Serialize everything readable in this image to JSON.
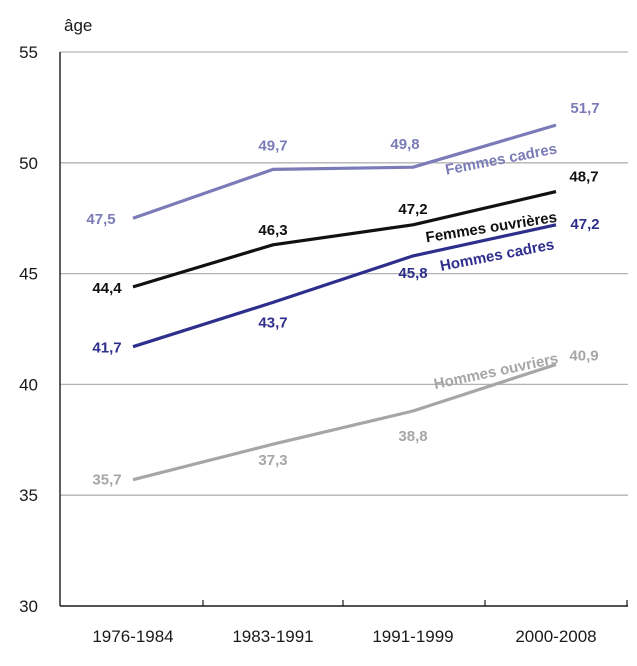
{
  "chart_data": {
    "type": "line",
    "title": "",
    "xlabel": "",
    "ylabel": "âge",
    "categories": [
      "1976-1984",
      "1983-1991",
      "1991-1999",
      "2000-2008"
    ],
    "ylim": [
      30,
      55
    ],
    "yticks": [
      30,
      35,
      40,
      45,
      50,
      55
    ],
    "ytick_labels": [
      "30",
      "35",
      "40",
      "45",
      "50",
      "55"
    ],
    "grid": "horizontal",
    "series": [
      {
        "name": "Femmes cadres",
        "color": "#7b7bb8",
        "values": [
          47.5,
          49.7,
          49.8,
          51.7
        ],
        "labels": [
          "47,5",
          "49,7",
          "49,8",
          "51,7"
        ]
      },
      {
        "name": "Femmes ouvrières",
        "color": "#111111",
        "values": [
          44.4,
          46.3,
          47.2,
          48.7
        ],
        "labels": [
          "44,4",
          "46,3",
          "47,2",
          "48,7"
        ]
      },
      {
        "name": "Hommes cadres",
        "color": "#2e2e8c",
        "values": [
          41.7,
          43.7,
          45.8,
          47.2
        ],
        "labels": [
          "41,7",
          "43,7",
          "45,8",
          "47,2"
        ]
      },
      {
        "name": "Hommes ouvriers",
        "color": "#a6a6a6",
        "values": [
          35.7,
          37.3,
          38.8,
          40.9
        ],
        "labels": [
          "35,7",
          "37,3",
          "38,8",
          "40,9"
        ]
      }
    ]
  }
}
